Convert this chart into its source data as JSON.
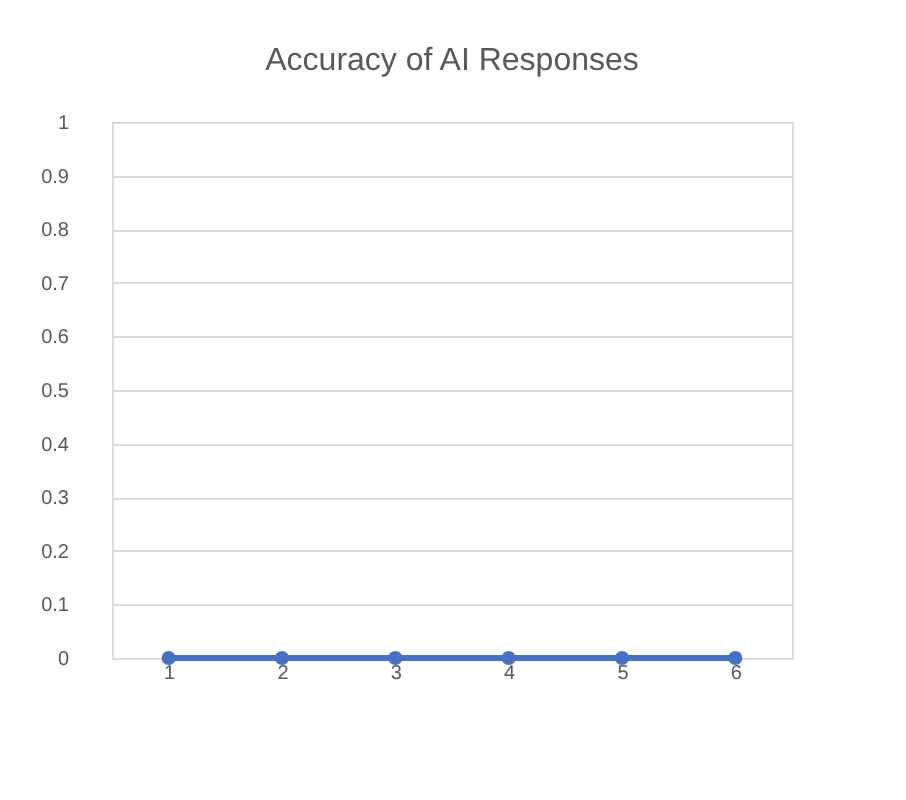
{
  "chart_data": {
    "type": "line",
    "title": "Accuracy of AI Responses",
    "categories": [
      "1",
      "2",
      "3",
      "4",
      "5",
      "6"
    ],
    "series": [
      {
        "color": "#4472c4",
        "values": [
          0,
          0,
          0,
          0,
          0,
          0
        ]
      }
    ],
    "ylim": [
      0,
      1
    ],
    "yticks": [
      0,
      0.1,
      0.2,
      0.3,
      0.4,
      0.5,
      0.6,
      0.7,
      0.8,
      0.9,
      1
    ],
    "grid": "y",
    "marker": "circle",
    "line_style": "solid",
    "legend": false
  }
}
